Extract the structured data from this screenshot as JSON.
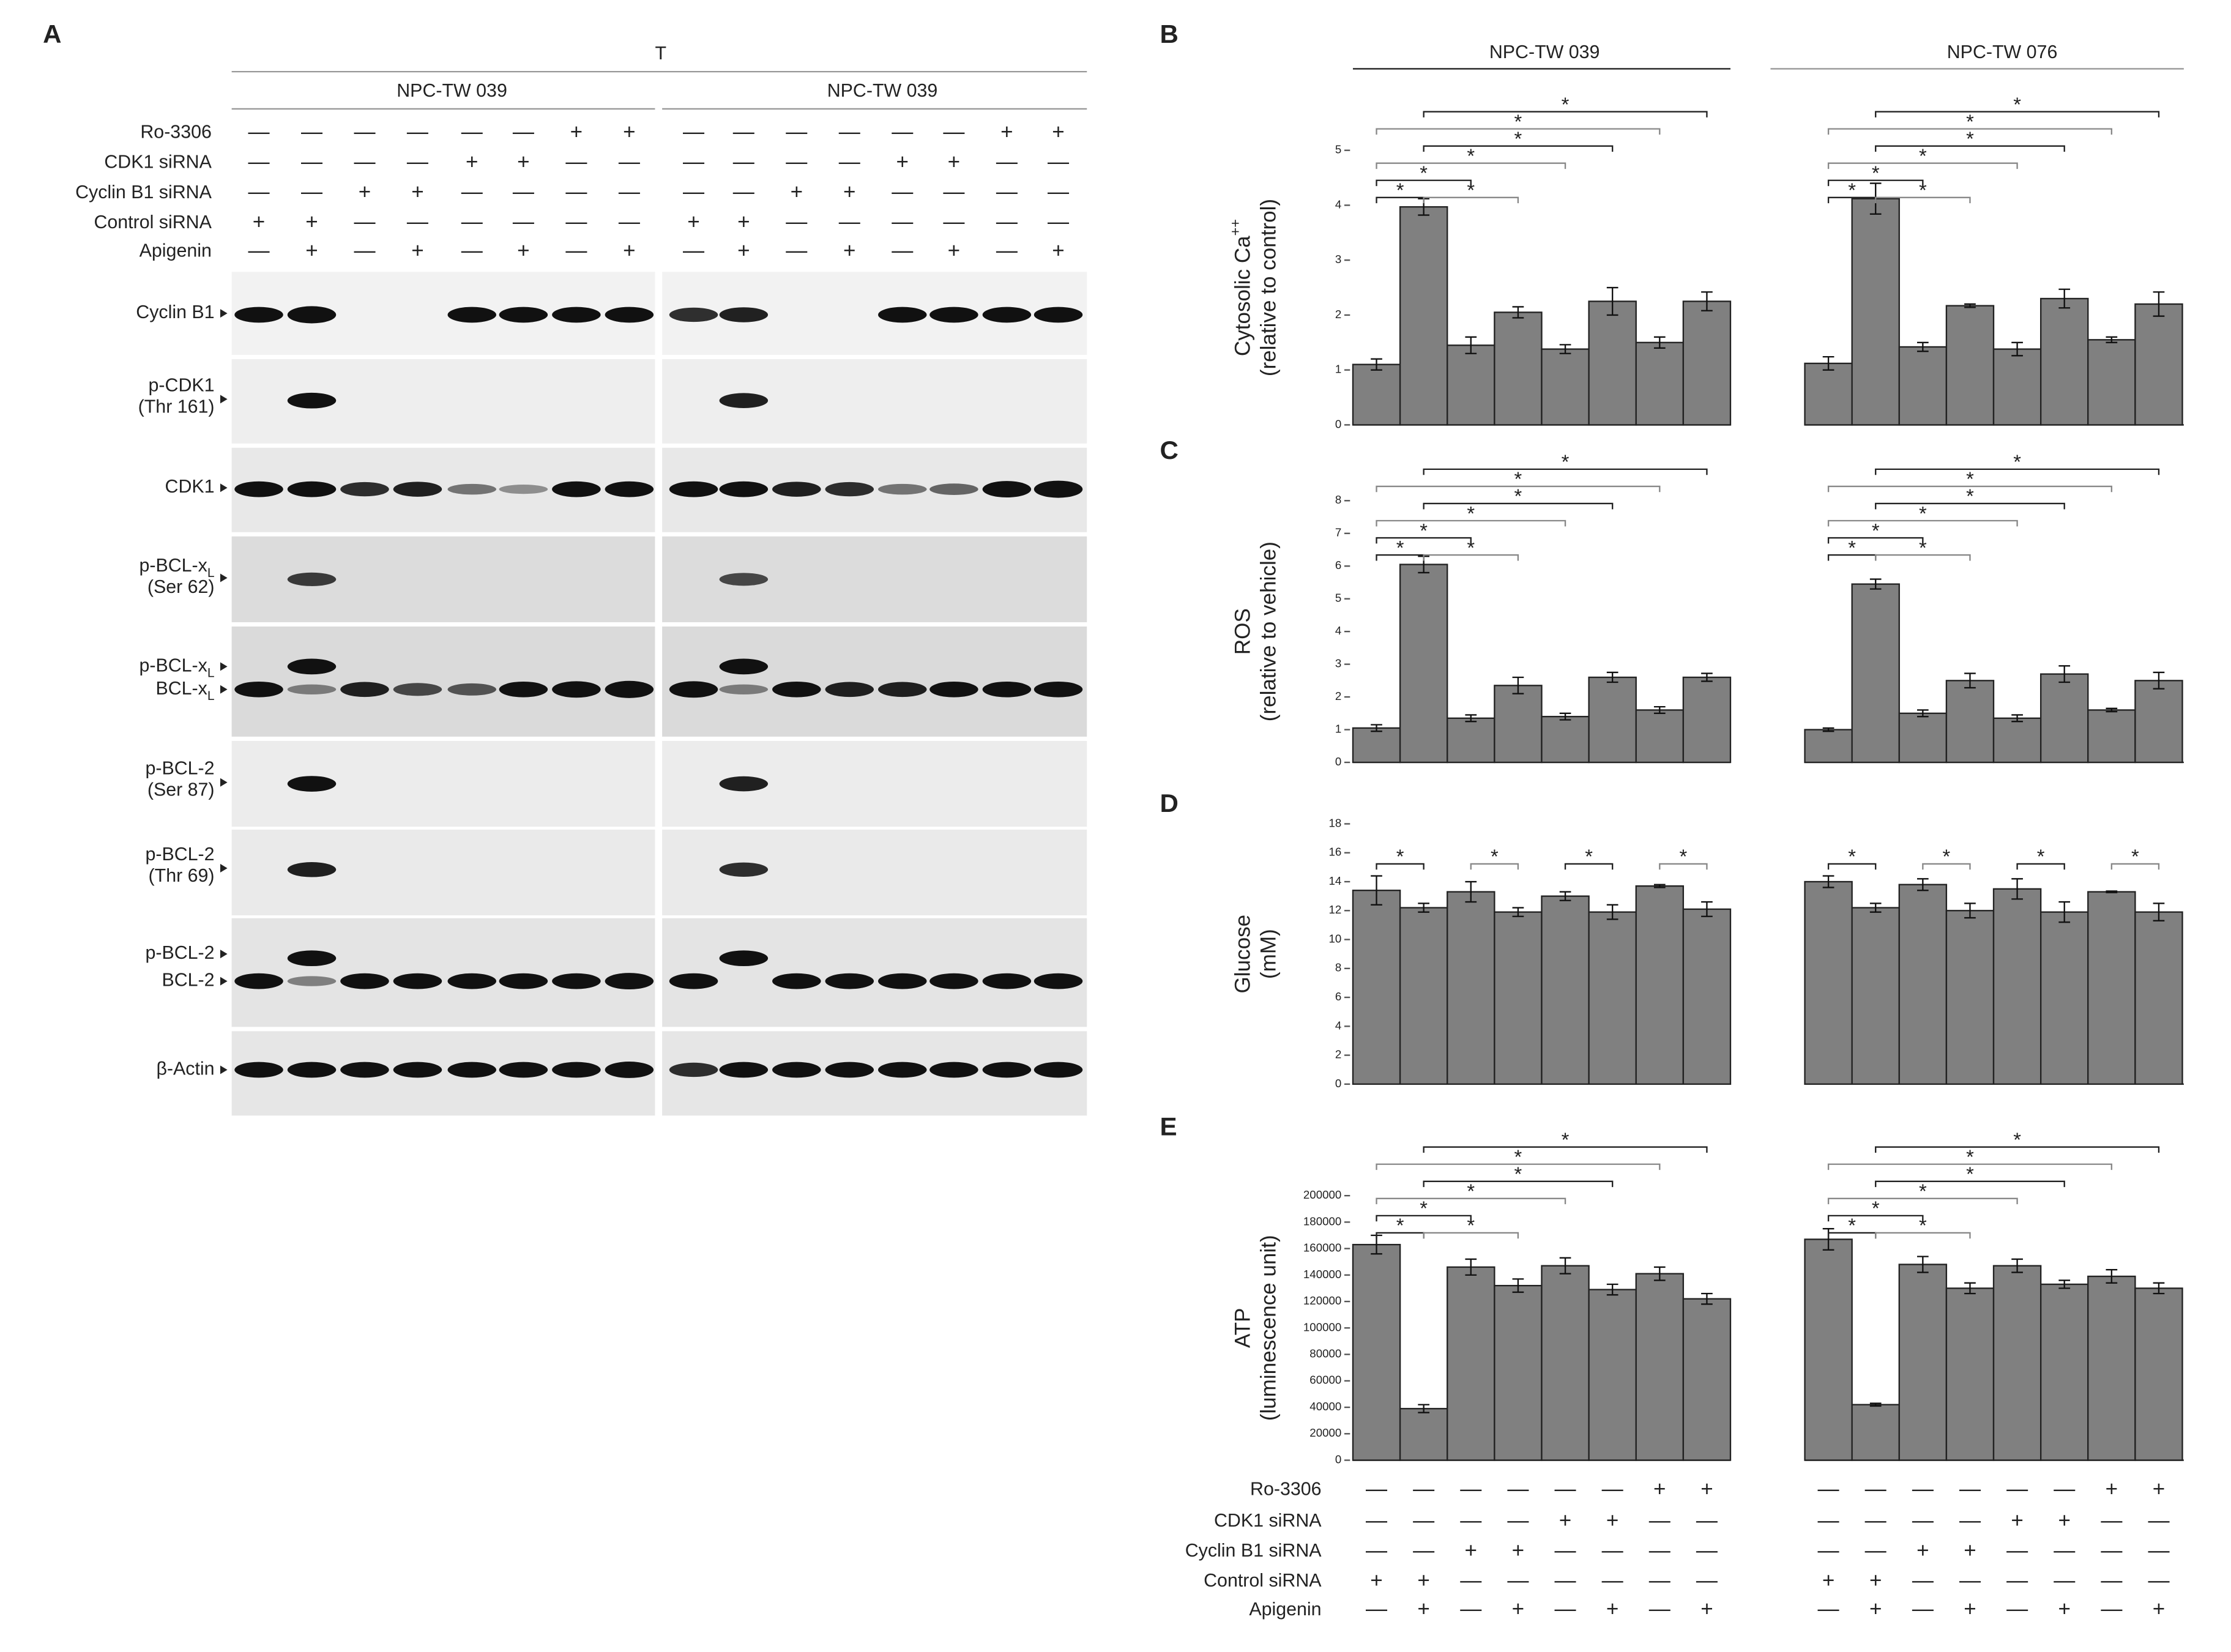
{
  "panel_a": {
    "label": "A",
    "title": "T",
    "cell_lines": [
      "NPC-TW 039",
      "NPC-TW 039"
    ],
    "blots": [
      [
        {
          "text": "Cyclin B1"
        }
      ],
      [
        {
          "text": "p-CDK1"
        },
        {
          "text": "(Thr 161)"
        }
      ],
      [
        {
          "text": "CDK1"
        }
      ],
      [
        {
          "text": "p-BCL-x",
          "sub": "L"
        },
        {
          "text": "(Ser 62)"
        }
      ],
      [
        {
          "text": "p-BCL-x",
          "sub": "L"
        },
        {
          "text": "BCL-x",
          "sub": "L"
        }
      ],
      [
        {
          "text": "p-BCL-2"
        },
        {
          "text": "(Ser 87)"
        }
      ],
      [
        {
          "text": "p-BCL-2"
        },
        {
          "text": "(Thr 69)"
        }
      ],
      [
        {
          "text": "p-BCL-2"
        },
        {
          "text": "BCL-2"
        }
      ],
      [
        {
          "text": "β-Actin"
        }
      ]
    ]
  },
  "treatments": [
    {
      "name": "Ro-3306",
      "signs": [
        "—",
        "—",
        "—",
        "—",
        "—",
        "—",
        "+",
        "+"
      ]
    },
    {
      "name": "CDK1 siRNA",
      "signs": [
        "—",
        "—",
        "—",
        "—",
        "+",
        "+",
        "—",
        "—"
      ]
    },
    {
      "name": "Cyclin B1 siRNA",
      "signs": [
        "—",
        "—",
        "+",
        "+",
        "—",
        "—",
        "—",
        "—"
      ]
    },
    {
      "name": "Control siRNA",
      "signs": [
        "+",
        "+",
        "—",
        "—",
        "—",
        "—",
        "—",
        "—"
      ]
    },
    {
      "name": "Apigenin",
      "signs": [
        "—",
        "+",
        "—",
        "+",
        "—",
        "+",
        "—",
        "+"
      ]
    }
  ],
  "chart_data": [
    {
      "type": "bar",
      "label": "B",
      "groups": [
        "NPC-TW 039",
        "NPC-TW 076"
      ],
      "y_label": [
        {
          "text": "Cytosolic Ca",
          "sup": "++"
        },
        {
          "text": "(relative to control)"
        }
      ],
      "ylim": [
        0,
        5
      ],
      "yticks": [
        0,
        1,
        2,
        3,
        4,
        5
      ],
      "color": "#808080",
      "values": [
        [
          1.1,
          3.97,
          1.45,
          2.05,
          1.38,
          2.25,
          1.5,
          2.25
        ],
        [
          1.12,
          4.12,
          1.42,
          2.17,
          1.38,
          2.3,
          1.55,
          2.2
        ]
      ],
      "errors": [
        [
          0.1,
          0.15,
          0.15,
          0.1,
          0.08,
          0.25,
          0.1,
          0.17
        ],
        [
          0.12,
          0.28,
          0.08,
          0.03,
          0.12,
          0.17,
          0.05,
          0.22
        ]
      ],
      "annotations": [
        "*",
        "*",
        "*",
        "*",
        "*",
        "*",
        "*",
        "*",
        "*",
        "*",
        "*",
        "*",
        "*",
        "*"
      ]
    },
    {
      "type": "bar",
      "label": "C",
      "y_label": [
        {
          "text": "ROS"
        },
        {
          "text": "(relative to vehicle)"
        }
      ],
      "ylim": [
        0,
        8
      ],
      "yticks": [
        0,
        1,
        2,
        3,
        4,
        5,
        6,
        7,
        8
      ],
      "color": "#808080",
      "values": [
        [
          1.05,
          6.05,
          1.35,
          2.35,
          1.4,
          2.6,
          1.6,
          2.6
        ],
        [
          1.0,
          5.45,
          1.5,
          2.5,
          1.35,
          2.7,
          1.6,
          2.5
        ]
      ],
      "errors": [
        [
          0.1,
          0.25,
          0.1,
          0.25,
          0.1,
          0.15,
          0.1,
          0.12
        ],
        [
          0.05,
          0.15,
          0.1,
          0.22,
          0.1,
          0.25,
          0.05,
          0.25
        ]
      ],
      "annotations": [
        "*",
        "*",
        "*",
        "*",
        "*",
        "*",
        "*",
        "*",
        "*",
        "*",
        "*",
        "*",
        "*",
        "*"
      ]
    },
    {
      "type": "bar",
      "label": "D",
      "y_label": [
        {
          "text": "Glucose"
        },
        {
          "text": "(mM)"
        }
      ],
      "ylim": [
        0,
        18
      ],
      "yticks": [
        0,
        2,
        4,
        6,
        8,
        10,
        12,
        14,
        16,
        18
      ],
      "color": "#808080",
      "values": [
        [
          13.4,
          12.2,
          13.3,
          11.9,
          13.0,
          11.9,
          13.7,
          12.1
        ],
        [
          14.0,
          12.2,
          13.8,
          12.0,
          13.5,
          11.9,
          13.3,
          11.9
        ]
      ],
      "errors": [
        [
          1.0,
          0.3,
          0.7,
          0.3,
          0.3,
          0.5,
          0.1,
          0.5
        ],
        [
          0.4,
          0.3,
          0.4,
          0.5,
          0.7,
          0.7,
          0.05,
          0.6
        ]
      ],
      "annotations": [
        "*",
        "*",
        "*",
        "*",
        "*",
        "*",
        "*",
        "*"
      ]
    },
    {
      "type": "bar",
      "label": "E",
      "y_label": [
        {
          "text": "ATP"
        },
        {
          "text": "(luminescence unit)"
        }
      ],
      "ylim": [
        0,
        200000
      ],
      "yticks": [
        0,
        20000,
        40000,
        60000,
        80000,
        100000,
        120000,
        140000,
        160000,
        180000,
        200000
      ],
      "color": "#808080",
      "values": [
        [
          163000,
          39000,
          146000,
          132000,
          147000,
          129000,
          141000,
          122000
        ],
        [
          167000,
          42000,
          148000,
          130000,
          147000,
          133000,
          139000,
          130000
        ]
      ],
      "errors": [
        [
          7000,
          3000,
          6000,
          5000,
          6000,
          4000,
          5000,
          4000
        ],
        [
          8000,
          1000,
          6000,
          4000,
          5000,
          3000,
          5000,
          4000
        ]
      ],
      "annotations": [
        "*",
        "*",
        "*",
        "*",
        "*",
        "*",
        "*",
        "*",
        "*",
        "*",
        "*",
        "*",
        "*",
        "*"
      ]
    }
  ]
}
